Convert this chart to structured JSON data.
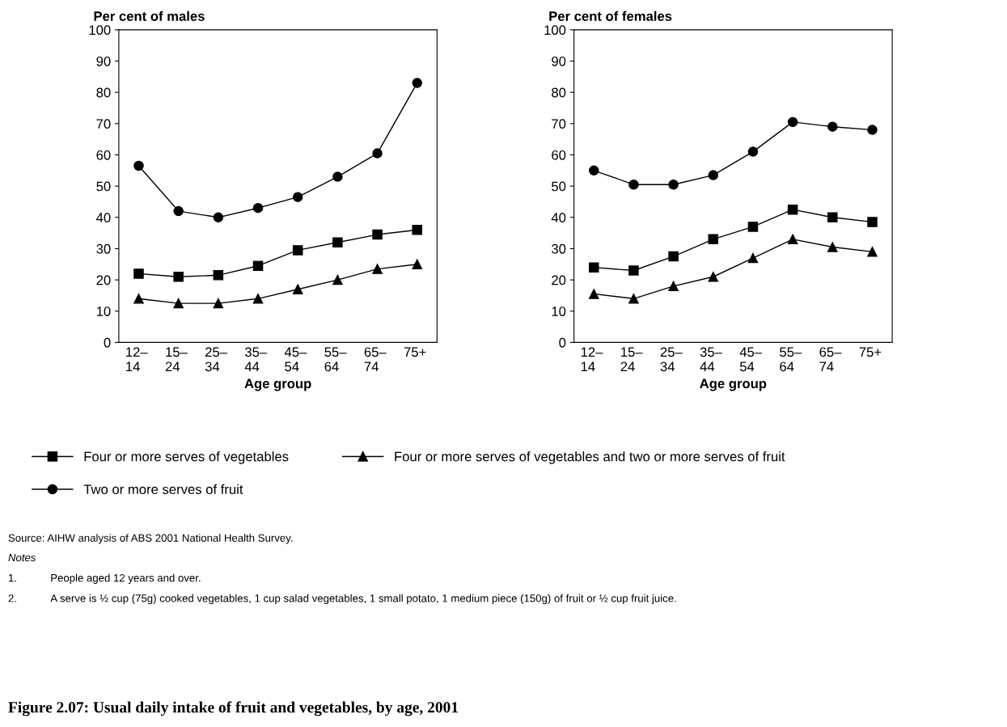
{
  "chart_data": [
    {
      "type": "line",
      "title": "Per cent of males",
      "xlabel": "Age group",
      "categories": [
        "12–\n14",
        "15–\n24",
        "25–\n34",
        "35–\n44",
        "45–\n54",
        "55–\n64",
        "65–\n74",
        "75+"
      ],
      "series": [
        {
          "name": "Four or more serves of vegetables",
          "color": "#000000",
          "marker": "square",
          "values": [
            22,
            21,
            21.5,
            24.5,
            29.5,
            32,
            34.5,
            36
          ]
        },
        {
          "name": "Four or more serves of vegetables and two or more serves of fruit",
          "color": "#000000",
          "marker": "triangle",
          "values": [
            14,
            12.5,
            12.5,
            14,
            17,
            20,
            23.5,
            25
          ]
        },
        {
          "name": "Two or more serves of fruit",
          "color": "#000000",
          "marker": "circle",
          "values": [
            56.5,
            42,
            40,
            43,
            46.5,
            53,
            60.5,
            83
          ]
        }
      ],
      "ylim": [
        0,
        100
      ],
      "yticks": [
        0,
        10,
        20,
        30,
        40,
        50,
        60,
        70,
        80,
        90,
        100
      ],
      "grid": false,
      "legend": "bottom",
      "line_style": "solid",
      "annotations": [
        "Source: AIHW analysis of ABS 2001 National Health Survey.",
        "Notes",
        "1.\tPeople aged 12 years and over.",
        "2.\tA serve is ½ cup (75g) cooked vegetables, 1 cup salad vegetables, 1 small potato, 1 medium piece (150g) of fruit or ½ cup fruit juice.",
        "Figure 2.07: Usual daily intake of fruit and vegetables, by age, 2001"
      ]
    },
    {
      "type": "line",
      "title": "Per cent of females",
      "xlabel": "Age group",
      "categories": [
        "12–\n14",
        "15–\n24",
        "25–\n34",
        "35–\n44",
        "45–\n54",
        "55–\n64",
        "65–\n74",
        "75+"
      ],
      "series": [
        {
          "color": "#000000",
          "marker": "square",
          "values": [
            24,
            23,
            27.5,
            33,
            37,
            42.5,
            40,
            38.5
          ]
        },
        {
          "color": "#000000",
          "marker": "triangle",
          "values": [
            15.5,
            14,
            18,
            21,
            27,
            33,
            30.5,
            29
          ]
        },
        {
          "color": "#000000",
          "marker": "circle",
          "values": [
            55,
            50.5,
            50.5,
            53.5,
            61,
            70.5,
            69,
            68
          ]
        }
      ],
      "ylim": [
        0,
        100
      ],
      "yticks": [
        0,
        10,
        20,
        30,
        40,
        50,
        60,
        70,
        80,
        90,
        100
      ],
      "grid": false,
      "line_style": "solid"
    }
  ]
}
